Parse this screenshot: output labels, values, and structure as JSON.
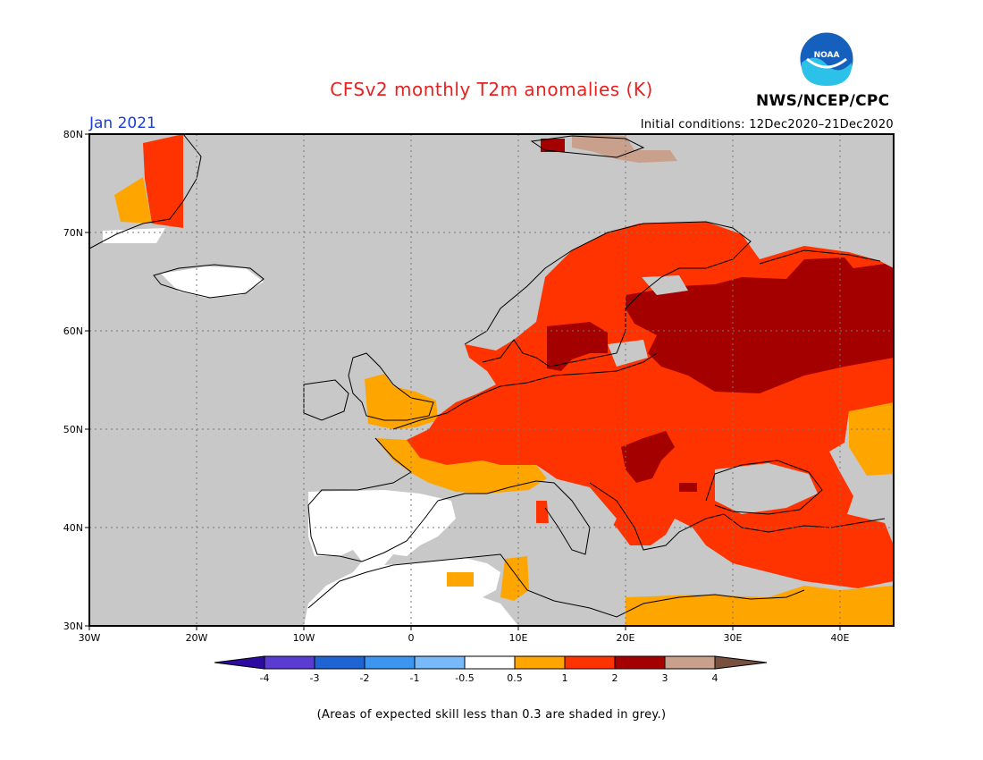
{
  "header": {
    "title": "CFSv2 monthly T2m anomalies (K)",
    "agency": "NWS/NCEP/CPC",
    "month": "Jan 2021",
    "initial_conditions": "Initial conditions: 12Dec2020–21Dec2020",
    "logo_text": "NOAA"
  },
  "map": {
    "lon_ticks": [
      "30W",
      "20W",
      "10W",
      "0",
      "10E",
      "20E",
      "30E",
      "40E"
    ],
    "lat_ticks": [
      "80N",
      "70N",
      "60N",
      "50N",
      "40N",
      "30N"
    ],
    "colors": {
      "ocean_grey": "#c8c8c8",
      "low_skill_grey": "#c8c8c8",
      "neutral_white": "#ffffff",
      "orange_0_5_1": "#ffa500",
      "red_1_2": "#ff3300",
      "darkred_2_3": "#a50000",
      "tan_3_4": "#c8a08c"
    }
  },
  "legend": {
    "tick_labels": [
      "-4",
      "-3",
      "-2",
      "-1",
      "-0.5",
      "0.5",
      "1",
      "2",
      "3",
      "4"
    ],
    "colors": [
      "#2d0aa0",
      "#5a3cd2",
      "#1e64d2",
      "#3c96f0",
      "#78b9fa",
      "#ffffff",
      "#ffa500",
      "#ff3300",
      "#a50000",
      "#c8a08c",
      "#785040"
    ]
  },
  "footnote": "(Areas of expected skill less than 0.3 are shaded in grey.)"
}
